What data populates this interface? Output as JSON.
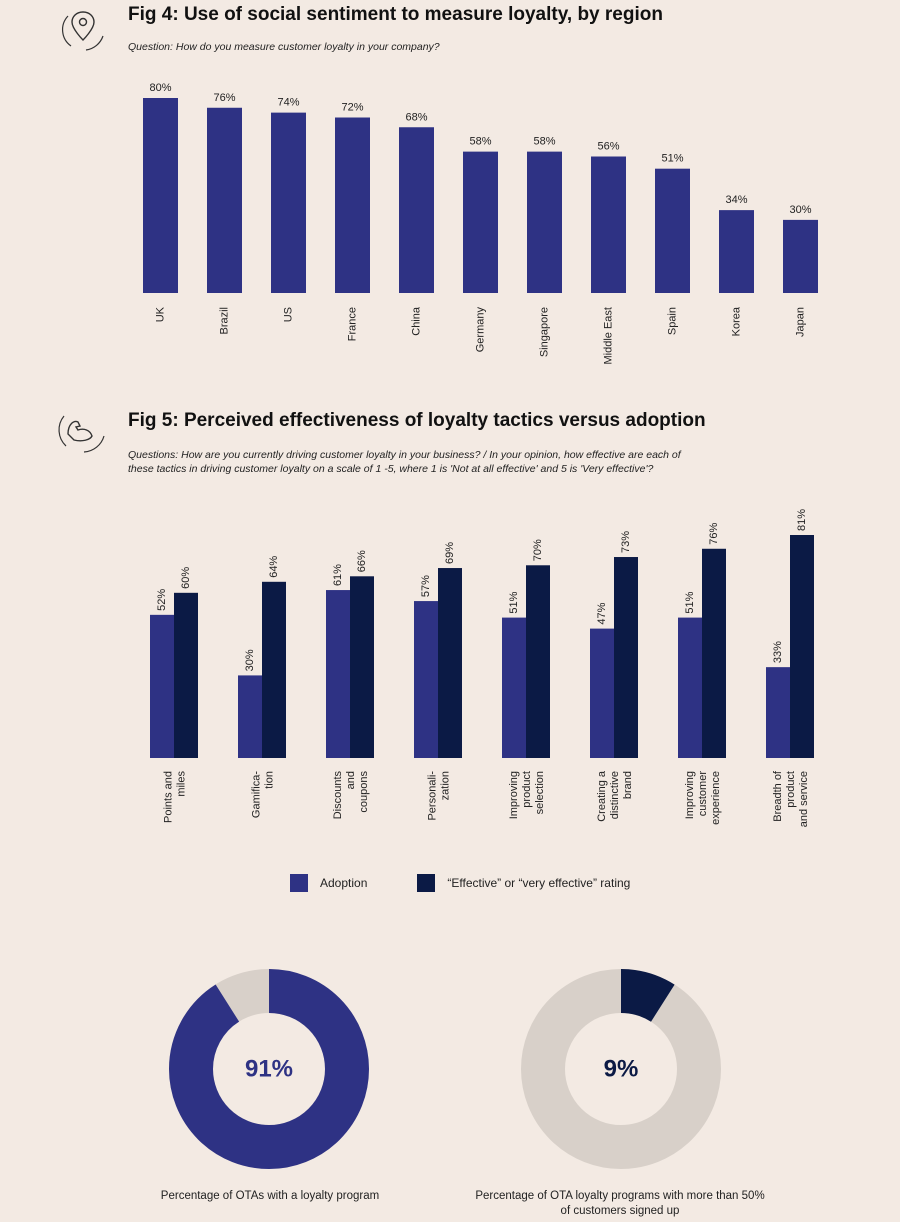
{
  "colors": {
    "adoption": "#2e3284",
    "effective": "#0b1a45",
    "track": "#d8d0c9",
    "background": "#f3eae3",
    "icon": "#333333"
  },
  "fig4": {
    "title": "Fig 4: Use of social sentiment to measure loyalty, by region",
    "question": "Question: How do you measure customer loyalty in your company?",
    "icon": "location-pin-icon"
  },
  "fig5": {
    "title": "Fig 5: Perceived effectiveness of loyalty tactics versus adoption",
    "question_line1": "Questions: How are you currently driving customer loyalty in your business? / In your opinion, how effective are each of",
    "question_line2": "these tactics in driving customer loyalty on a scale of 1 -5, where 1 is 'Not at all effective' and 5 is 'Very effective'?",
    "icon": "flexed-arm-icon",
    "legend": {
      "adoption": "Adoption",
      "effective": "“Effective” or “very effective” rating"
    }
  },
  "chart_data": [
    {
      "type": "bar",
      "categories": [
        "UK",
        "Brazil",
        "US",
        "France",
        "China",
        "Germany",
        "Singapore",
        "Middle East",
        "Spain",
        "Korea",
        "Japan"
      ],
      "values": [
        80,
        76,
        74,
        72,
        68,
        58,
        58,
        56,
        51,
        34,
        30
      ],
      "value_labels": [
        "80%",
        "76%",
        "74%",
        "72%",
        "68%",
        "58%",
        "58%",
        "56%",
        "51%",
        "34%",
        "30%"
      ],
      "ylim": [
        0,
        80
      ],
      "grid": false,
      "legend": "none"
    },
    {
      "type": "bar",
      "categories": [
        [
          "Points and",
          "miles"
        ],
        [
          "Gamifica-",
          "tion"
        ],
        [
          "Discounts",
          "and",
          "coupons"
        ],
        [
          "Personali-",
          "zation"
        ],
        [
          "Improving",
          "product",
          "selection"
        ],
        [
          "Creating a",
          "distinctive",
          "brand"
        ],
        [
          "Improving",
          "customer",
          "experience"
        ],
        [
          "Breadth of",
          "product",
          "and service"
        ]
      ],
      "series": [
        {
          "name": "Adoption",
          "values": [
            52,
            30,
            61,
            57,
            51,
            47,
            51,
            33
          ],
          "labels": [
            "52%",
            "30%",
            "61%",
            "57%",
            "51%",
            "47%",
            "51%",
            "33%"
          ]
        },
        {
          "name": "“Effective” or “very effective” rating",
          "values": [
            60,
            64,
            66,
            69,
            70,
            73,
            76,
            81
          ],
          "labels": [
            "60%",
            "64%",
            "66%",
            "69%",
            "70%",
            "73%",
            "76%",
            "81%"
          ]
        }
      ],
      "ylim": [
        0,
        81
      ],
      "grid": false,
      "legend": "bottom"
    },
    {
      "type": "pie",
      "style": "donut",
      "value": 91,
      "center_label": "91%",
      "caption": "Percentage of OTAs with a loyalty program"
    },
    {
      "type": "pie",
      "style": "donut",
      "value": 9,
      "center_label": "9%",
      "caption": "Percentage of OTA loyalty programs with more than 50% of customers signed up"
    }
  ]
}
